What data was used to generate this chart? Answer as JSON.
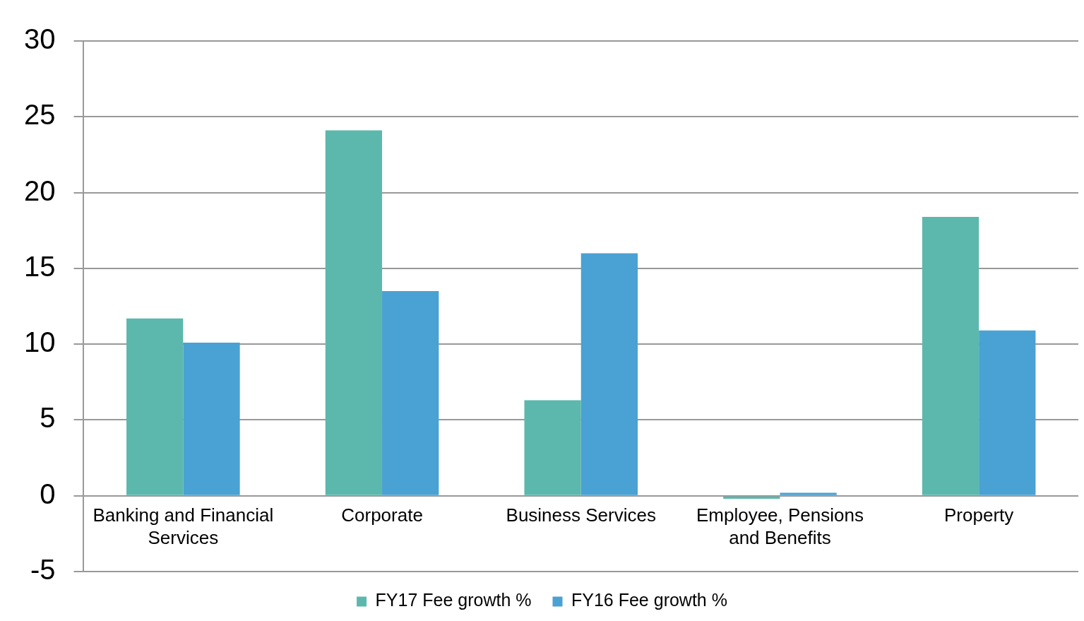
{
  "chart_data": {
    "type": "bar",
    "categories": [
      "Banking and Financial Services",
      "Corporate",
      "Business Services",
      "Employee, Pensions and Benefits",
      "Property"
    ],
    "series": [
      {
        "name": "FY17 Fee growth %",
        "color": "#5cb8ad",
        "values": [
          11.7,
          24.1,
          6.3,
          -0.2,
          18.4
        ]
      },
      {
        "name": "FY16 Fee growth %",
        "color": "#4aa1d3",
        "values": [
          10.1,
          13.5,
          16.0,
          0.2,
          10.9
        ]
      }
    ],
    "ylim": [
      -5,
      30
    ],
    "yticks": [
      -5,
      0,
      5,
      10,
      15,
      20,
      25,
      30
    ],
    "grid": "y",
    "legend": "bottom"
  }
}
